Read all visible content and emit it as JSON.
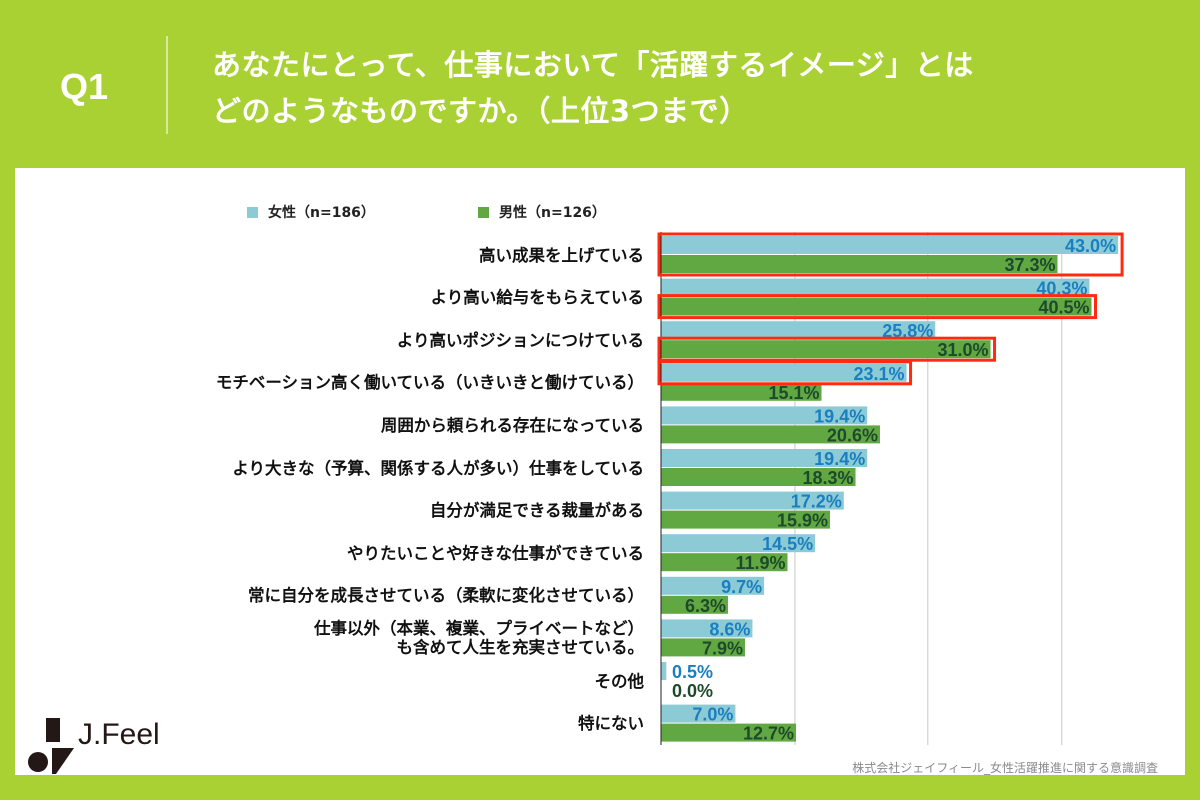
{
  "header": {
    "question": "Q1",
    "title_lines": [
      "あなたにとって、仕事において「活躍するイメージ」とは",
      "どのようなものですか。（上位3つまで）"
    ]
  },
  "source": "株式会社ジェイフィール_女性活躍推進に関する意識調査",
  "logo": "J.Feel",
  "colors": {
    "background": "#a9d134",
    "female": "#8ccbd6",
    "male": "#62a842",
    "female_label": "#1a7fc0",
    "male_label": "#1d4a2c",
    "highlight": "#ff2a10"
  },
  "chart_data": {
    "type": "bar",
    "orientation": "horizontal",
    "xlim": [
      0,
      50
    ],
    "grid": true,
    "legend_position": "top",
    "categories": [
      "高い成果を上げている",
      "より高い給与をもらえている",
      "より高いポジションにつけている",
      "モチベーション高く働いている（いきいきと働けている）",
      "周囲から頼られる存在になっている",
      "より大きな（予算、関係する人が多い）仕事をしている",
      "自分が満足できる裁量がある",
      "やりたいことや好きな仕事ができている",
      "常に自分を成長させている（柔軟に変化させている）",
      "仕事以外（本業、複業、プライベートなど）\nも含めて人生を充実させている。",
      "その他",
      "特にない"
    ],
    "series": [
      {
        "name": "女性（n=186）",
        "values": [
          43.0,
          40.3,
          25.8,
          23.1,
          19.4,
          19.4,
          17.2,
          14.5,
          9.7,
          8.6,
          0.5,
          7.0
        ]
      },
      {
        "name": "男性（n=126）",
        "values": [
          37.3,
          40.5,
          31.0,
          15.1,
          20.6,
          18.3,
          15.9,
          11.9,
          6.3,
          7.9,
          0.0,
          12.7
        ]
      }
    ],
    "highlights": [
      {
        "category": 0,
        "series": "both"
      },
      {
        "category": 1,
        "series": 1
      },
      {
        "category": 2,
        "series": 1
      },
      {
        "category": 3,
        "series": 0
      }
    ]
  }
}
